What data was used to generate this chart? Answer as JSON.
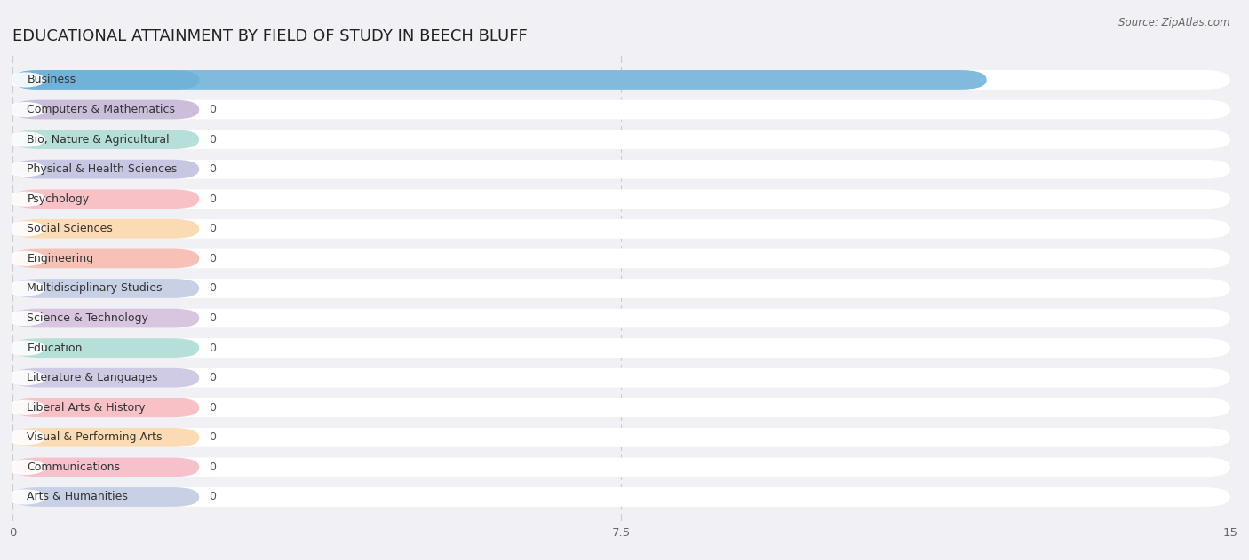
{
  "title": "EDUCATIONAL ATTAINMENT BY FIELD OF STUDY IN BEECH BLUFF",
  "source": "Source: ZipAtlas.com",
  "categories": [
    "Business",
    "Computers & Mathematics",
    "Bio, Nature & Agricultural",
    "Physical & Health Sciences",
    "Psychology",
    "Social Sciences",
    "Engineering",
    "Multidisciplinary Studies",
    "Science & Technology",
    "Education",
    "Literature & Languages",
    "Liberal Arts & History",
    "Visual & Performing Arts",
    "Communications",
    "Arts & Humanities"
  ],
  "values": [
    12,
    0,
    0,
    0,
    0,
    0,
    0,
    0,
    0,
    0,
    0,
    0,
    0,
    0,
    0
  ],
  "bar_colors": [
    "#6aaed6",
    "#b09cc8",
    "#8ecfc4",
    "#a9a9d4",
    "#f4a0a8",
    "#f9c98a",
    "#f4a090",
    "#a9b8d8",
    "#c4a8d0",
    "#8ecfc4",
    "#b8b0d8",
    "#f4a0a8",
    "#f9c98a",
    "#f4a0b0",
    "#a9b8d8"
  ],
  "xlim": [
    0,
    15
  ],
  "xticks": [
    0,
    7.5,
    15
  ],
  "background_color": "#f0f0f5",
  "bar_bg_color": "#e4e4ec",
  "white_pill_color": "#ffffff",
  "title_fontsize": 13,
  "label_fontsize": 9,
  "source_fontsize": 8.5
}
